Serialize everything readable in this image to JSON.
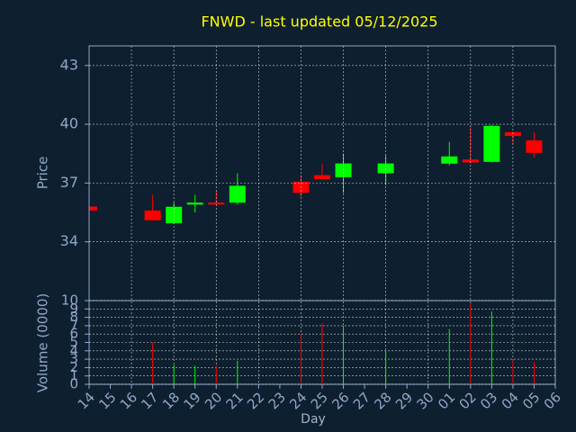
{
  "chart_data": {
    "type": "candlestick",
    "title": "FNWD - last updated 05/12/2025",
    "xlabel": "Day",
    "ylabel": "Price",
    "volume_label": "Volume (0000)",
    "categories": [
      "14",
      "15",
      "16",
      "17",
      "18",
      "19",
      "20",
      "21",
      "22",
      "23",
      "24",
      "25",
      "26",
      "27",
      "28",
      "29",
      "30",
      "01",
      "02",
      "03",
      "04",
      "05",
      "06"
    ],
    "open": [
      35.8,
      null,
      null,
      35.6,
      34.95,
      35.9,
      36.0,
      36.0,
      null,
      null,
      37.07,
      37.4,
      37.3,
      null,
      37.5,
      null,
      null,
      37.99,
      38.2,
      38.08,
      39.6,
      39.18,
      null
    ],
    "high": [
      35.9,
      null,
      null,
      36.4,
      36.0,
      36.4,
      36.6,
      37.5,
      null,
      null,
      37.4,
      38.0,
      38.5,
      null,
      38.4,
      null,
      null,
      39.1,
      39.9,
      39.95,
      39.6,
      39.6,
      null
    ],
    "low": [
      35.5,
      null,
      null,
      35.1,
      34.9,
      35.5,
      35.9,
      35.9,
      null,
      null,
      36.3,
      37.2,
      36.5,
      null,
      36.9,
      null,
      null,
      37.9,
      38.0,
      38.05,
      39.0,
      38.3,
      null
    ],
    "close": [
      35.6,
      null,
      null,
      35.1,
      35.79,
      36.0,
      35.9,
      36.86,
      null,
      null,
      36.5,
      37.2,
      38.0,
      null,
      38.0,
      null,
      null,
      38.36,
      38.05,
      39.92,
      39.4,
      38.54,
      null
    ],
    "volume": [
      null,
      null,
      null,
      5.0,
      2.3,
      2.2,
      2.2,
      2.8,
      null,
      null,
      6.1,
      7.3,
      7.0,
      null,
      4.0,
      null,
      null,
      6.6,
      9.7,
      8.7,
      2.9,
      2.7,
      null
    ],
    "up_color": "#00ff00",
    "down_color": "#ff0000",
    "title_color": "#ffff00",
    "ylim": [
      31,
      44
    ],
    "yticks": [
      34,
      37,
      40,
      43
    ],
    "volume_ylim": [
      0,
      10
    ],
    "volume_yticks": [
      0,
      1,
      2,
      3,
      4,
      5,
      6,
      7,
      8,
      9,
      10
    ],
    "grid": true
  }
}
